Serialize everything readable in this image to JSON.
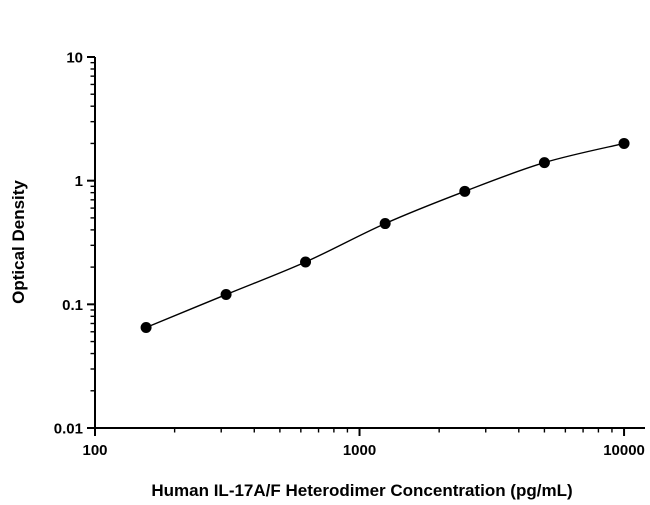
{
  "chart_data": {
    "type": "scatter",
    "title": "",
    "xlabel": "Human IL-17A/F Heterodimer Concentration (pg/mL)",
    "ylabel": "Optical Density",
    "x": [
      156,
      313,
      625,
      1250,
      2500,
      5000,
      10000
    ],
    "y": [
      0.065,
      0.12,
      0.22,
      0.45,
      0.82,
      1.4,
      2.0
    ],
    "xscale": "log",
    "yscale": "log",
    "xlim": [
      100,
      12000
    ],
    "ylim": [
      0.01,
      10
    ],
    "x_ticks": [
      100,
      1000,
      10000
    ],
    "x_tick_labels": [
      "100",
      "1000",
      "10000"
    ],
    "y_ticks": [
      0.01,
      0.1,
      1,
      10
    ],
    "y_tick_labels": [
      "0.01",
      "0.1",
      "1",
      "10"
    ],
    "grid": false,
    "legend": null,
    "marker_color": "#000000",
    "line_color": "#000000",
    "axis_color": "#000000",
    "background": "#ffffff"
  }
}
